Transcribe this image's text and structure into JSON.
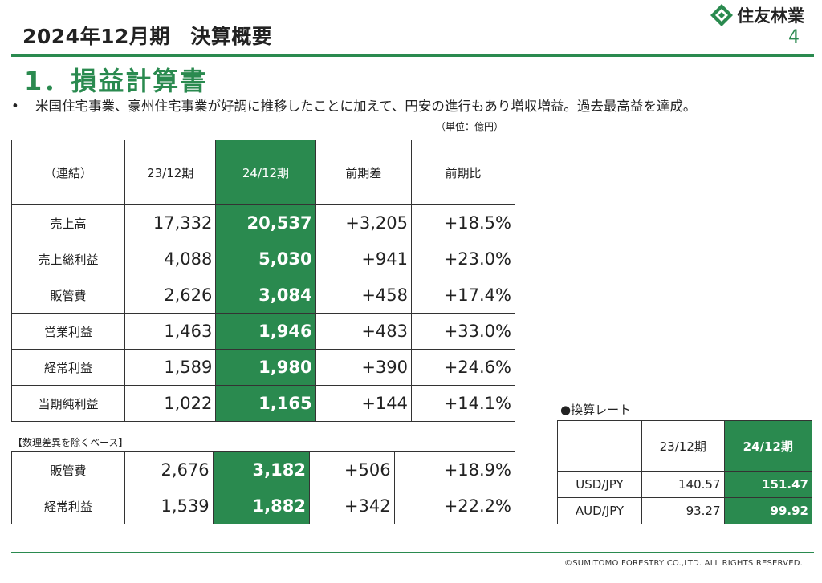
{
  "header": {
    "title": "2024年12月期　決算概要",
    "company": "住友林業",
    "page_number": "4",
    "accent_color": "#2a8a4f"
  },
  "section": {
    "title": "1．損益計算書",
    "bullet_marker": "•",
    "bullet": "米国住宅事業、豪州住宅事業が好調に推移したことに加えて、円安の進行もあり増収増益。過去最高益を達成。",
    "unit": "（単位：億円）"
  },
  "pl_table": {
    "headers": [
      "（連結）",
      "23/12期",
      "24/12期",
      "前期差",
      "前期比"
    ],
    "rows": [
      {
        "label": "売上高",
        "prev": "17,332",
        "curr": "20,537",
        "diff": "+3,205",
        "ratio": "+18.5%"
      },
      {
        "label": "売上総利益",
        "prev": "4,088",
        "curr": "5,030",
        "diff": "+941",
        "ratio": "+23.0%"
      },
      {
        "label": "販管費",
        "prev": "2,626",
        "curr": "3,084",
        "diff": "+458",
        "ratio": "+17.4%"
      },
      {
        "label": "営業利益",
        "prev": "1,463",
        "curr": "1,946",
        "diff": "+483",
        "ratio": "+33.0%"
      },
      {
        "label": "経常利益",
        "prev": "1,589",
        "curr": "1,980",
        "diff": "+390",
        "ratio": "+24.6%"
      },
      {
        "label": "当期純利益",
        "prev": "1,022",
        "curr": "1,165",
        "diff": "+144",
        "ratio": "+14.1%"
      }
    ]
  },
  "adjusted_table": {
    "note": "【数理差異を除くベース】",
    "rows": [
      {
        "label": "販管費",
        "prev": "2,676",
        "curr": "3,182",
        "diff": "+506",
        "ratio": "+18.9%"
      },
      {
        "label": "経常利益",
        "prev": "1,539",
        "curr": "1,882",
        "diff": "+342",
        "ratio": "+22.2%"
      }
    ]
  },
  "fx_table": {
    "title": "●換算レート",
    "headers": [
      "",
      "23/12期",
      "24/12期"
    ],
    "rows": [
      {
        "label": "USD/JPY",
        "prev": "140.57",
        "curr": "151.47"
      },
      {
        "label": "AUD/JPY",
        "prev": "93.27",
        "curr": "99.92"
      }
    ]
  },
  "footer": {
    "copyright": "©SUMITOMO FORESTRY CO.,LTD. ALL RIGHTS RESERVED."
  }
}
